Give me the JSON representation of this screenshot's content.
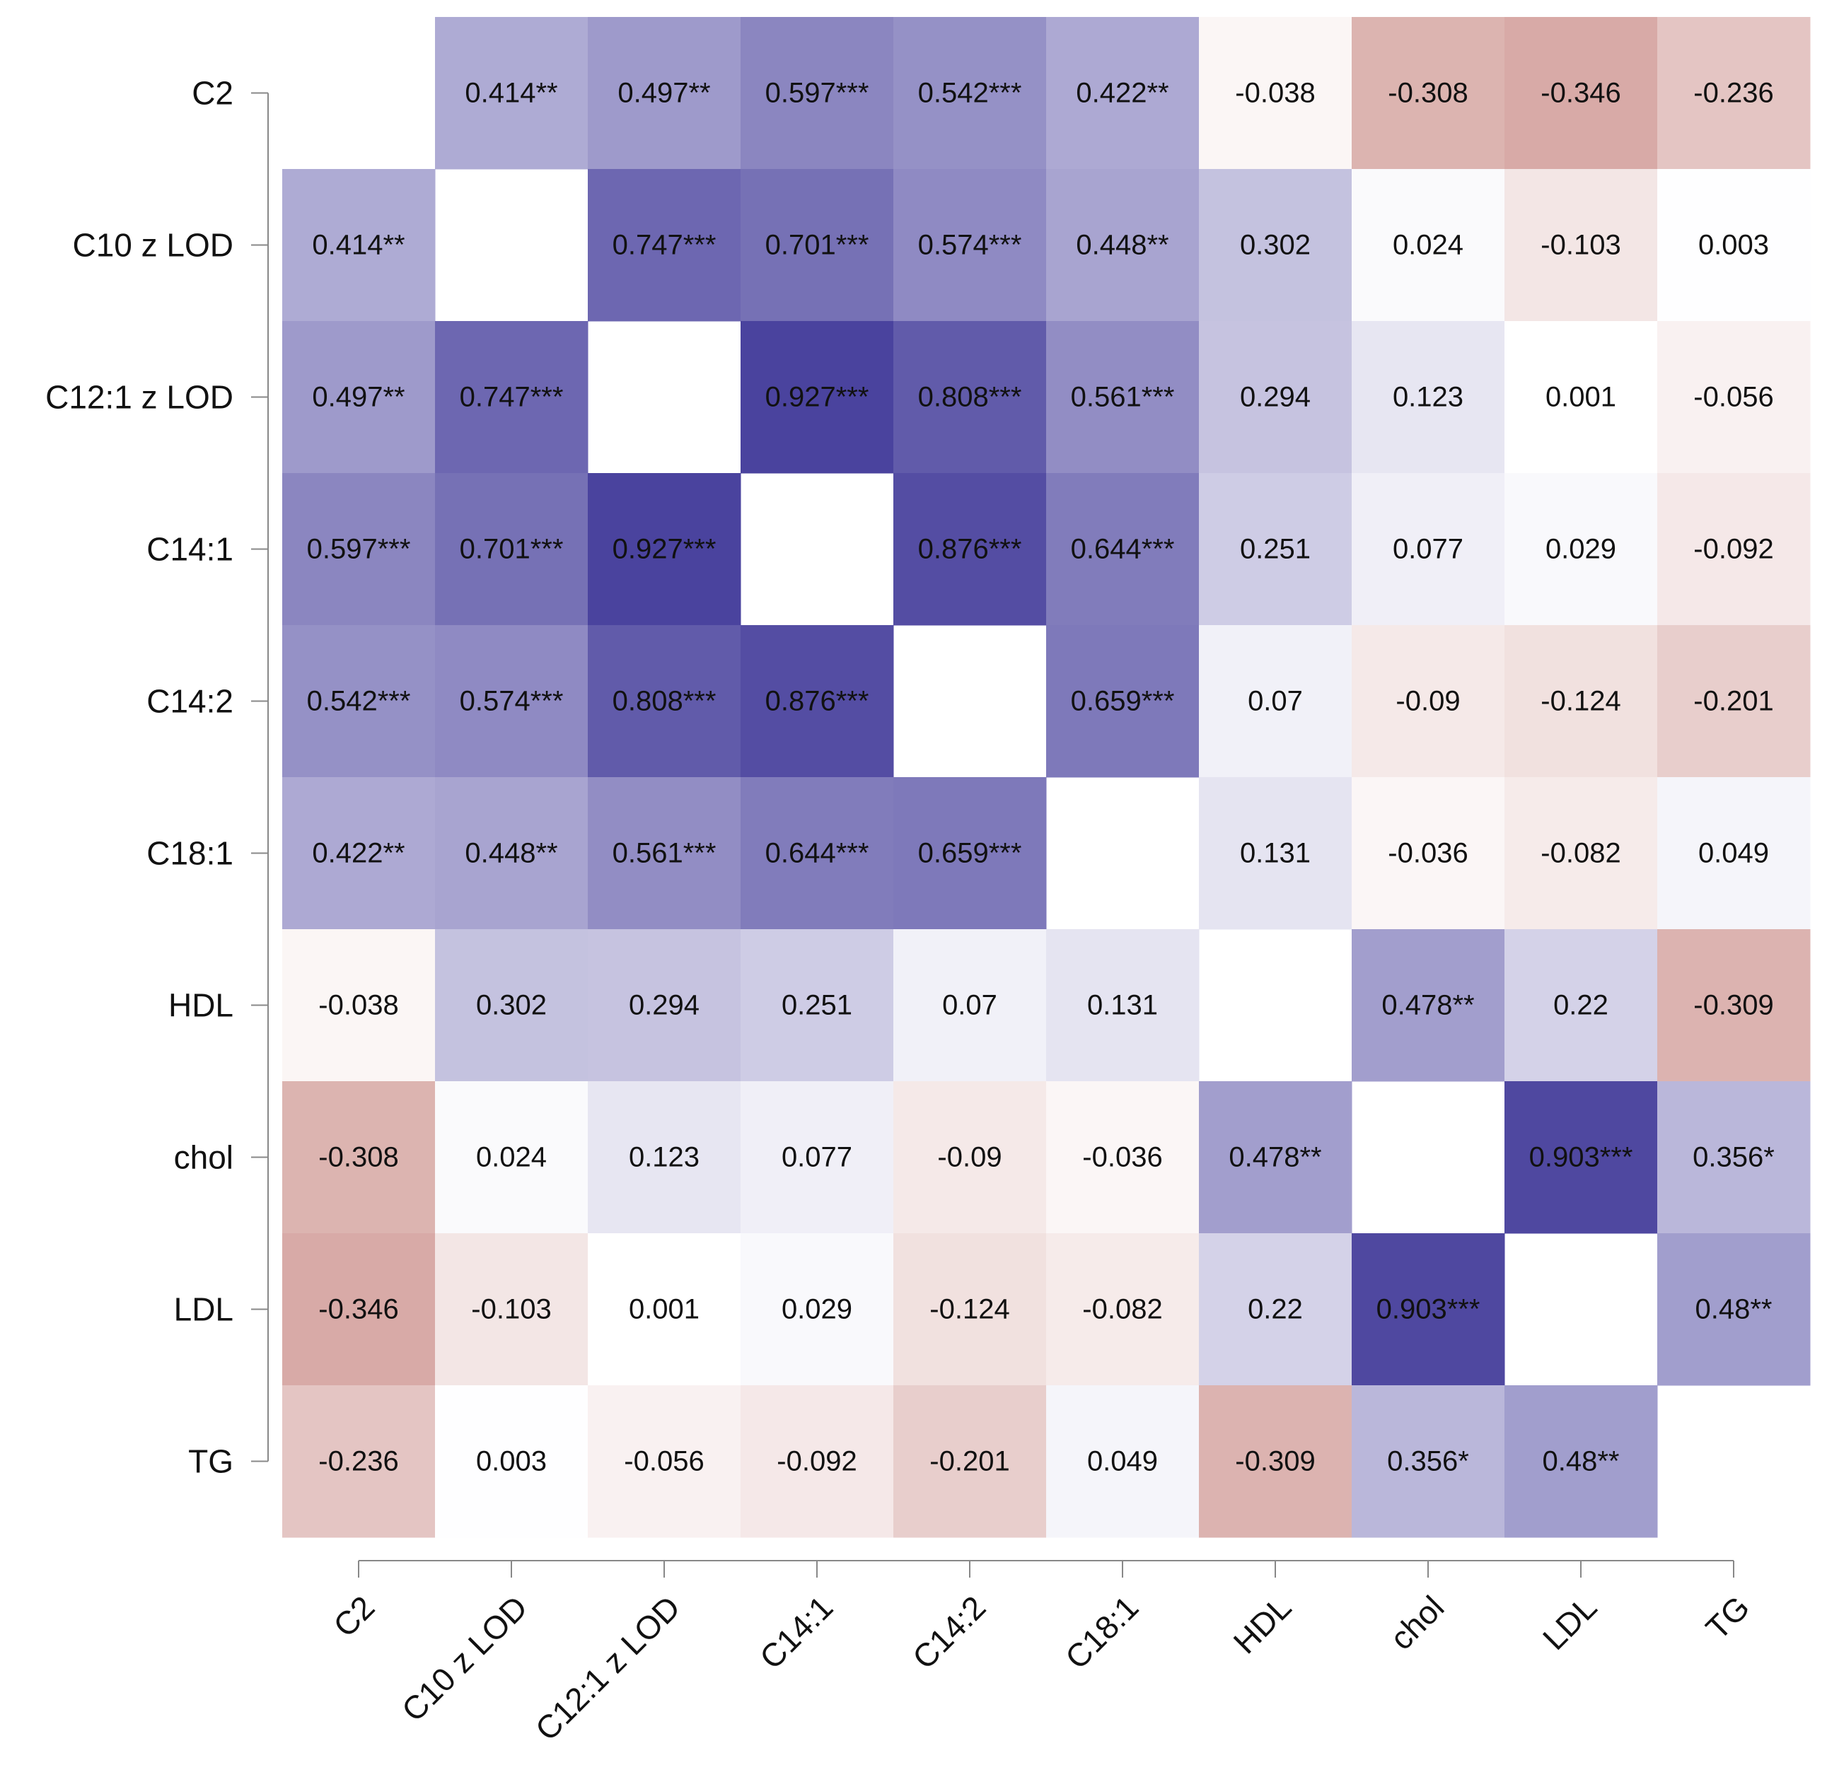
{
  "chart_data": {
    "type": "heatmap",
    "title": "",
    "variables": [
      "C2",
      "C10 z LOD",
      "C12:1 z LOD",
      "C14:1",
      "C14:2",
      "C18:1",
      "HDL",
      "chol",
      "LDL",
      "TG"
    ],
    "value_range": [
      -1,
      1
    ],
    "colors": {
      "positive": "#3c3496",
      "negative": "#8e0a00",
      "zero": "#ffffff"
    },
    "diagonal": "blank",
    "values": [
      [
        null,
        0.414,
        0.497,
        0.597,
        0.542,
        0.422,
        -0.038,
        -0.308,
        -0.346,
        -0.236
      ],
      [
        0.414,
        null,
        0.747,
        0.701,
        0.574,
        0.448,
        0.302,
        0.024,
        -0.103,
        0.003
      ],
      [
        0.497,
        0.747,
        null,
        0.927,
        0.808,
        0.561,
        0.294,
        0.123,
        0.001,
        -0.056
      ],
      [
        0.597,
        0.701,
        0.927,
        null,
        0.876,
        0.644,
        0.251,
        0.077,
        0.029,
        -0.092
      ],
      [
        0.542,
        0.574,
        0.808,
        0.876,
        null,
        0.659,
        0.07,
        -0.09,
        -0.124,
        -0.201
      ],
      [
        0.422,
        0.448,
        0.561,
        0.644,
        0.659,
        null,
        0.131,
        -0.036,
        -0.082,
        0.049
      ],
      [
        -0.038,
        0.302,
        0.294,
        0.251,
        0.07,
        0.131,
        null,
        0.478,
        0.22,
        -0.309
      ],
      [
        -0.308,
        0.024,
        0.123,
        0.077,
        -0.09,
        -0.036,
        0.478,
        null,
        0.903,
        0.356
      ],
      [
        -0.346,
        -0.103,
        0.001,
        0.029,
        -0.124,
        -0.082,
        0.22,
        0.903,
        null,
        0.48
      ],
      [
        -0.236,
        0.003,
        -0.056,
        -0.092,
        -0.201,
        0.049,
        -0.309,
        0.356,
        0.48,
        null
      ]
    ],
    "labels": [
      [
        "",
        "0.414**",
        "0.497**",
        "0.597***",
        "0.542***",
        "0.422**",
        "-0.038",
        "-0.308",
        "-0.346",
        "-0.236"
      ],
      [
        "0.414**",
        "",
        "0.747***",
        "0.701***",
        "0.574***",
        "0.448**",
        "0.302",
        "0.024",
        "-0.103",
        "0.003"
      ],
      [
        "0.497**",
        "0.747***",
        "",
        "0.927***",
        "0.808***",
        "0.561***",
        "0.294",
        "0.123",
        "0.001",
        "-0.056"
      ],
      [
        "0.597***",
        "0.701***",
        "0.927***",
        "",
        "0.876***",
        "0.644***",
        "0.251",
        "0.077",
        "0.029",
        "-0.092"
      ],
      [
        "0.542***",
        "0.574***",
        "0.808***",
        "0.876***",
        "",
        "0.659***",
        "0.07",
        "-0.09",
        "-0.124",
        "-0.201"
      ],
      [
        "0.422**",
        "0.448**",
        "0.561***",
        "0.644***",
        "0.659***",
        "",
        "0.131",
        "-0.036",
        "-0.082",
        "0.049"
      ],
      [
        "-0.038",
        "0.302",
        "0.294",
        "0.251",
        "0.07",
        "0.131",
        "",
        "0.478**",
        "0.22",
        "-0.309"
      ],
      [
        "-0.308",
        "0.024",
        "0.123",
        "0.077",
        "-0.09",
        "-0.036",
        "0.478**",
        "",
        "0.903***",
        "0.356*"
      ],
      [
        "-0.346",
        "-0.103",
        "0.001",
        "0.029",
        "-0.124",
        "-0.082",
        "0.22",
        "0.903***",
        "",
        "0.48**"
      ],
      [
        "-0.236",
        "0.003",
        "-0.056",
        "-0.092",
        "-0.201",
        "0.049",
        "-0.309",
        "0.356*",
        "0.48**",
        ""
      ]
    ]
  }
}
